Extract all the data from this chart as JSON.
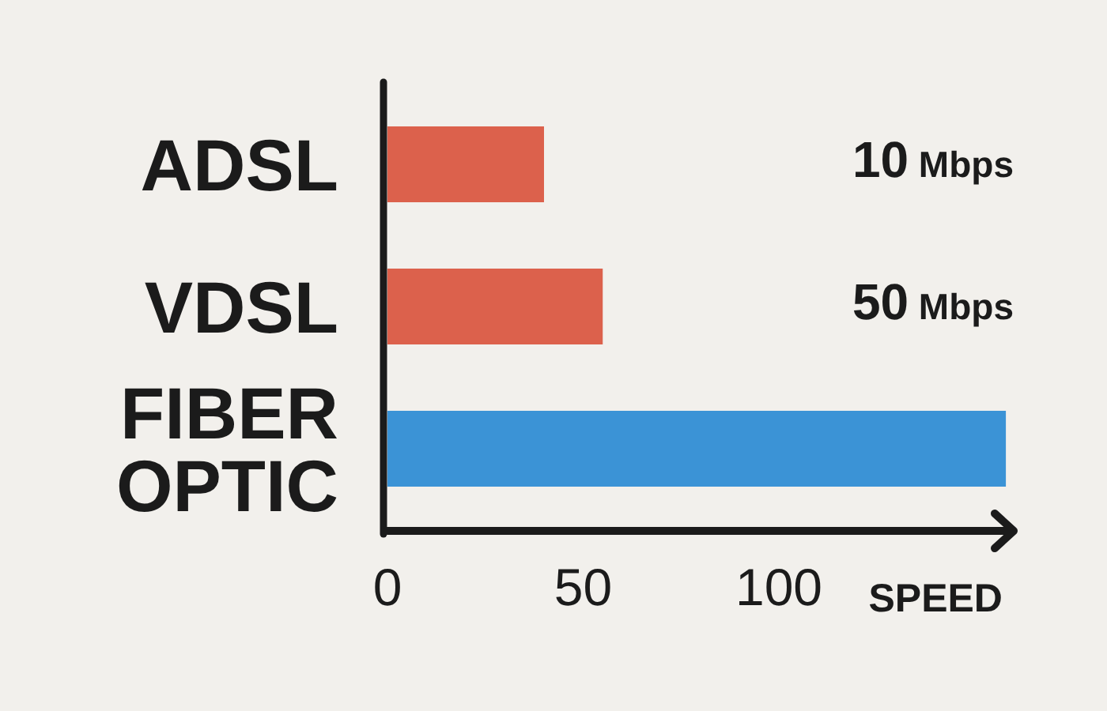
{
  "chart_data": {
    "type": "bar",
    "orientation": "horizontal",
    "categories": [
      "ADSL",
      "VDSL",
      "FIBER OPTIC"
    ],
    "values": [
      40,
      55,
      158
    ],
    "colors": [
      "#dc614c",
      "#dc614c",
      "#3b93d6"
    ],
    "xlim": [
      0,
      160
    ],
    "xticks": [
      0,
      50,
      100
    ],
    "xlabel": "SPEED",
    "annotations": [
      "10 Mbps",
      "50 Mbps"
    ]
  }
}
